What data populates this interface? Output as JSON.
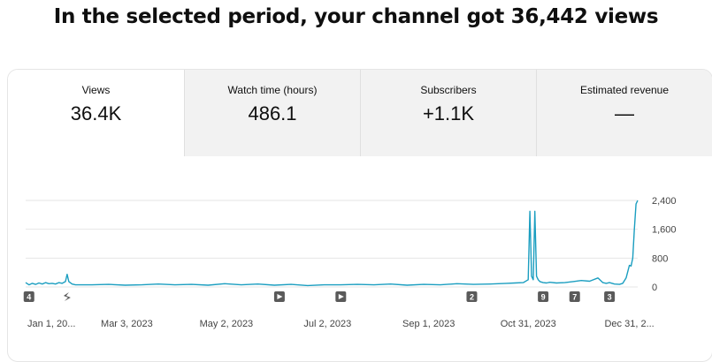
{
  "headline": "In the selected period, your channel got 36,442 views",
  "metrics": [
    {
      "label": "Views",
      "value": "36.4K",
      "active": true
    },
    {
      "label": "Watch time (hours)",
      "value": "486.1",
      "active": false
    },
    {
      "label": "Subscribers",
      "value": "+1.1K",
      "active": false
    },
    {
      "label": "Estimated revenue",
      "value": "—",
      "active": false
    }
  ],
  "colors": {
    "line": "#1b9ec0",
    "grid": "#e6e6e6",
    "marker_bg": "#5a5a5a"
  },
  "chart_data": {
    "type": "line",
    "title": "",
    "xlabel": "",
    "ylabel": "",
    "ylim": [
      0,
      2400
    ],
    "y_ticks": [
      "2,400",
      "1,600",
      "800",
      "0"
    ],
    "y_tick_values": [
      2400,
      1600,
      800,
      0
    ],
    "x_tick_labels": [
      "Jan 1, 20...",
      "Mar 3, 2023",
      "May 2, 2023",
      "Jul 2, 2023",
      "Sep 1, 2023",
      "Oct 31, 2023",
      "Dec 31, 2..."
    ],
    "x_tick_days": [
      0,
      61,
      121,
      182,
      243,
      303,
      364
    ],
    "x_range_days": [
      0,
      369
    ],
    "series": [
      {
        "x_days": [
          0,
          2,
          4,
          6,
          8,
          10,
          12,
          14,
          16,
          18,
          20,
          22,
          24,
          25,
          26,
          28,
          30,
          40,
          50,
          60,
          70,
          80,
          90,
          100,
          110,
          120,
          130,
          140,
          150,
          160,
          170,
          180,
          190,
          200,
          210,
          220,
          230,
          240,
          250,
          260,
          270,
          280,
          290,
          295,
          300,
          303,
          304,
          305,
          306,
          307,
          308,
          309,
          310,
          312,
          314,
          316,
          320,
          325,
          330,
          335,
          340,
          345,
          348,
          350,
          352,
          355,
          358,
          360,
          362,
          364,
          365,
          366,
          367,
          368,
          369
        ],
        "values": [
          120,
          60,
          100,
          70,
          110,
          80,
          120,
          90,
          100,
          80,
          120,
          100,
          150,
          350,
          150,
          80,
          60,
          60,
          70,
          50,
          60,
          80,
          60,
          70,
          50,
          90,
          60,
          80,
          50,
          70,
          40,
          60,
          60,
          70,
          60,
          80,
          50,
          70,
          60,
          90,
          70,
          80,
          100,
          110,
          120,
          200,
          2100,
          300,
          200,
          2100,
          300,
          200,
          150,
          120,
          110,
          130,
          110,
          120,
          150,
          180,
          160,
          250,
          120,
          100,
          120,
          80,
          70,
          100,
          250,
          600,
          580,
          800,
          1600,
          2300,
          2400
        ]
      }
    ],
    "event_markers": [
      {
        "label": "4",
        "day": 2
      },
      {
        "label": "shorts",
        "day": 25
      },
      {
        "label": "play",
        "day": 153
      },
      {
        "label": "play",
        "day": 190
      },
      {
        "label": "2",
        "day": 269
      },
      {
        "label": "9",
        "day": 312
      },
      {
        "label": "7",
        "day": 331
      },
      {
        "label": "3",
        "day": 352
      }
    ]
  }
}
